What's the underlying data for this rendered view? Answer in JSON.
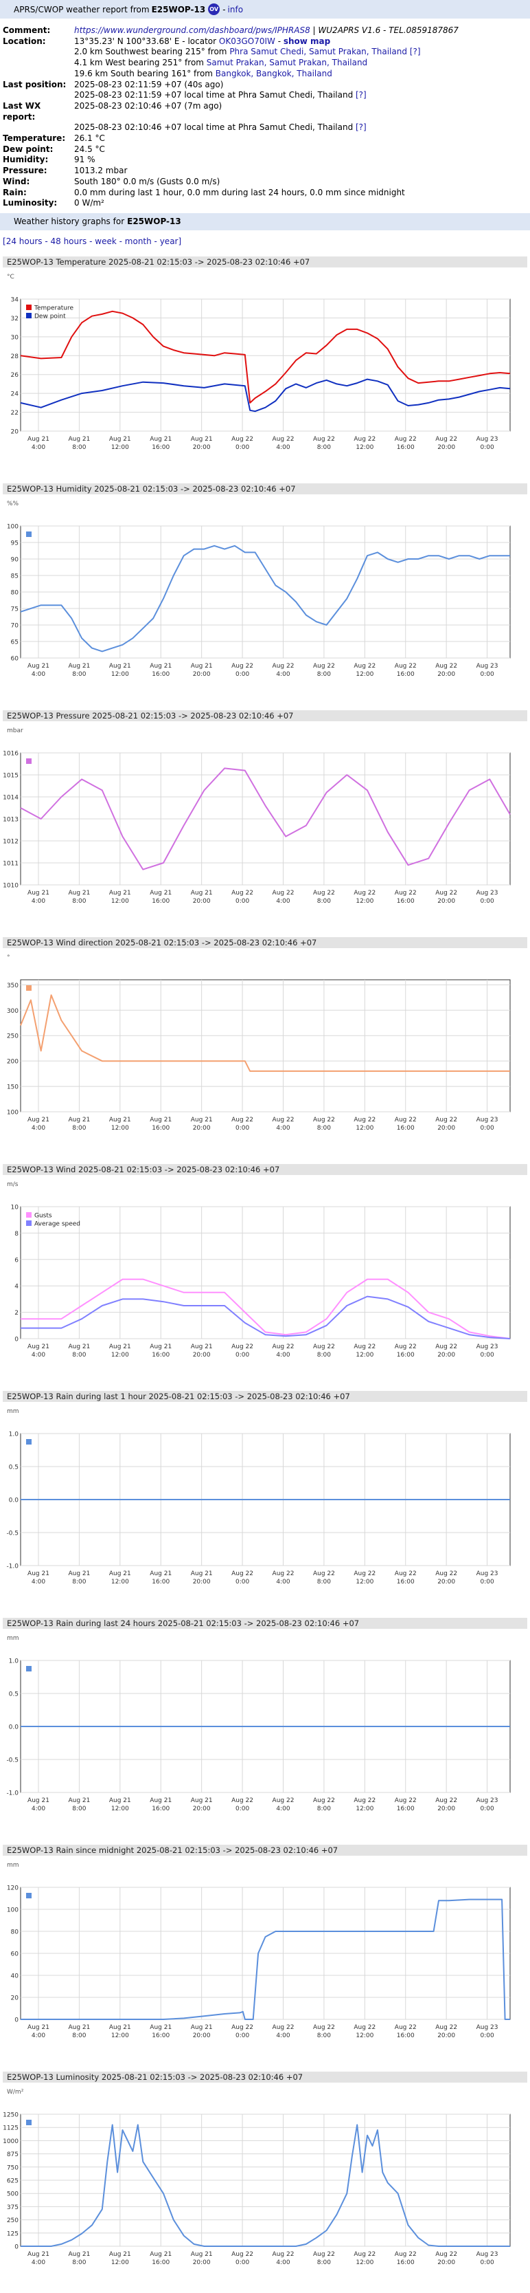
{
  "header": {
    "prefix": "APRS/CWOP weather report from",
    "callsign": "E25WOP-13",
    "ov_label": "OV",
    "info_label": "info",
    "separator": "-"
  },
  "station": {
    "comment_label": "Comment:",
    "comment_link": "https://www.wunderground.com/dashboard/pws/IPHRAS8",
    "comment_rest": " | WU2APRS V1.6 - TEL.0859187867",
    "location_label": "Location:",
    "location_coords": "13°35.23' N 100°33.68' E - locator ",
    "locator": "OK03GO70IW",
    "location_dash": " - ",
    "show_map": "show map",
    "near1_pre": "2.0 km Southwest bearing 215° from ",
    "near1_link": "Phra Samut Chedi, Samut Prakan, Thailand",
    "near1_q": "[?]",
    "near2_pre": "4.1 km West bearing 251° from ",
    "near2_link": "Samut Prakan, Samut Prakan, Thailand",
    "near3_pre": "19.6 km South bearing 161° from ",
    "near3_link": "Bangkok, Bangkok, Thailand",
    "lastpos_label": "Last position:",
    "lastpos_1": "2025-08-23 02:11:59 +07 (40s ago)",
    "lastpos_2": "2025-08-23 02:11:59 +07 local time at Phra Samut Chedi, Thailand ",
    "lastwx_label": "Last WX report:",
    "lastwx_1": "2025-08-23 02:10:46 +07 (7m ago)",
    "lastwx_2": "2025-08-23 02:10:46 +07 local time at Phra Samut Chedi, Thailand ",
    "q": "[?]",
    "temp_label": "Temperature:",
    "temp": "26.1 °C",
    "dew_label": "Dew point:",
    "dew": "24.5 °C",
    "hum_label": "Humidity:",
    "hum": "91 %",
    "press_label": "Pressure:",
    "press": "1013.2 mbar",
    "wind_label": "Wind:",
    "wind": "South 180° 0.0 m/s (Gusts 0.0 m/s)",
    "rain_label": "Rain:",
    "rain": "0.0 mm during last 1 hour, 0.0 mm during last 24 hours, 0.0 mm since midnight",
    "lum_label": "Luminosity:",
    "lum": "0 W/m²"
  },
  "history": {
    "title_prefix": "Weather history graphs for",
    "callsign": "E25WOP-13",
    "periods_open": "[",
    "periods": [
      "24 hours",
      "48 hours",
      "week",
      "month",
      "year"
    ],
    "periods_close": "]"
  },
  "x_ticks": [
    {
      "d": "Aug 21",
      "t": "4:00"
    },
    {
      "d": "Aug 21",
      "t": "8:00"
    },
    {
      "d": "Aug 21",
      "t": "12:00"
    },
    {
      "d": "Aug 21",
      "t": "16:00"
    },
    {
      "d": "Aug 21",
      "t": "20:00"
    },
    {
      "d": "Aug 22",
      "t": "0:00"
    },
    {
      "d": "Aug 22",
      "t": "4:00"
    },
    {
      "d": "Aug 22",
      "t": "8:00"
    },
    {
      "d": "Aug 22",
      "t": "12:00"
    },
    {
      "d": "Aug 22",
      "t": "16:00"
    },
    {
      "d": "Aug 22",
      "t": "20:00"
    },
    {
      "d": "Aug 23",
      "t": "0:00"
    }
  ],
  "x_range_hours": [
    0,
    48
  ],
  "x_first_tick_hours": 1.75,
  "charts": [
    {
      "id": "temperature",
      "title": "E25WOP-13 Temperature 2025-08-21 02:15:03 -> 2025-08-23 02:10:46 +07",
      "unit": "°C",
      "ylim": [
        20,
        34
      ],
      "yticks": [
        20,
        22,
        24,
        26,
        28,
        30,
        32,
        34
      ],
      "legend": [
        "Temperature",
        "Dew point"
      ],
      "colors": [
        "#e01010",
        "#1030c0"
      ],
      "series": [
        {
          "name": "Temperature",
          "x": [
            0,
            2,
            4,
            5,
            6,
            7,
            8,
            9,
            10,
            11,
            12,
            13,
            14,
            15,
            16,
            17,
            18,
            19,
            20,
            21,
            22,
            22.5,
            23,
            24,
            25,
            26,
            27,
            28,
            29,
            30,
            31,
            32,
            33,
            34,
            35,
            36,
            37,
            38,
            39,
            40,
            41,
            42,
            43,
            44,
            45,
            46,
            47,
            48
          ],
          "y": [
            28,
            27.7,
            27.8,
            30,
            31.5,
            32.2,
            32.4,
            32.7,
            32.5,
            32,
            31.3,
            30,
            29,
            28.6,
            28.3,
            28.2,
            28.1,
            28,
            28.3,
            28.2,
            28.1,
            23,
            23.5,
            24.2,
            25,
            26.2,
            27.5,
            28.3,
            28.2,
            29.1,
            30.2,
            30.8,
            30.8,
            30.4,
            29.8,
            28.7,
            26.8,
            25.6,
            25.1,
            25.2,
            25.3,
            25.3,
            25.5,
            25.7,
            25.9,
            26.1,
            26.2,
            26.1
          ]
        },
        {
          "name": "Dew point",
          "x": [
            0,
            2,
            4,
            6,
            8,
            10,
            12,
            14,
            16,
            18,
            20,
            22,
            22.5,
            23,
            24,
            25,
            26,
            27,
            28,
            29,
            30,
            31,
            32,
            33,
            34,
            35,
            36,
            37,
            38,
            39,
            40,
            41,
            42,
            43,
            44,
            45,
            46,
            47,
            48
          ],
          "y": [
            23,
            22.5,
            23.3,
            24,
            24.3,
            24.8,
            25.2,
            25.1,
            24.8,
            24.6,
            25,
            24.8,
            22.2,
            22.1,
            22.5,
            23.2,
            24.5,
            25,
            24.6,
            25.1,
            25.4,
            25,
            24.8,
            25.1,
            25.5,
            25.3,
            24.9,
            23.2,
            22.7,
            22.8,
            23,
            23.3,
            23.4,
            23.6,
            23.9,
            24.2,
            24.4,
            24.6,
            24.5
          ]
        }
      ]
    },
    {
      "id": "humidity",
      "title": "E25WOP-13 Humidity 2025-08-21 02:15:03 -> 2025-08-23 02:10:46 +07",
      "unit": "%%",
      "ylim": [
        60,
        100
      ],
      "yticks": [
        60,
        65,
        70,
        75,
        80,
        85,
        90,
        95,
        100
      ],
      "legend": [
        ""
      ],
      "colors": [
        "#5b8fdc"
      ],
      "series": [
        {
          "name": "",
          "x": [
            0,
            2,
            4,
            5,
            6,
            7,
            8,
            9,
            10,
            11,
            12,
            13,
            14,
            15,
            16,
            17,
            18,
            19,
            20,
            21,
            22,
            23,
            24,
            25,
            26,
            27,
            28,
            29,
            30,
            31,
            32,
            33,
            34,
            35,
            36,
            37,
            38,
            39,
            40,
            41,
            42,
            43,
            44,
            45,
            46,
            47,
            48
          ],
          "y": [
            74,
            76,
            76,
            72,
            66,
            63,
            62,
            63,
            64,
            66,
            69,
            72,
            78,
            85,
            91,
            93,
            93,
            94,
            93,
            94,
            92,
            92,
            87,
            82,
            80,
            77,
            73,
            71,
            70,
            74,
            78,
            84,
            91,
            92,
            90,
            89,
            90,
            90,
            91,
            91,
            90,
            91,
            91,
            90,
            91,
            91,
            91
          ]
        }
      ]
    },
    {
      "id": "pressure",
      "title": "E25WOP-13 Pressure 2025-08-21 02:15:03 -> 2025-08-23 02:10:46 +07",
      "unit": "mbar",
      "ylim": [
        1010,
        1016
      ],
      "yticks": [
        1010,
        1011,
        1012,
        1013,
        1014,
        1015,
        1016
      ],
      "legend": [
        ""
      ],
      "colors": [
        "#d070e0"
      ],
      "series": [
        {
          "name": "",
          "x": [
            0,
            2,
            4,
            6,
            8,
            10,
            12,
            14,
            16,
            18,
            20,
            22,
            24,
            26,
            28,
            30,
            32,
            34,
            36,
            38,
            40,
            42,
            44,
            46,
            48
          ],
          "y": [
            1013.5,
            1013,
            1014,
            1014.8,
            1014.3,
            1012.2,
            1010.7,
            1011,
            1012.7,
            1014.3,
            1015.3,
            1015.2,
            1013.6,
            1012.2,
            1012.7,
            1014.2,
            1015,
            1014.3,
            1012.4,
            1010.9,
            1011.2,
            1012.8,
            1014.3,
            1014.8,
            1013.2
          ]
        }
      ]
    },
    {
      "id": "wind_direction",
      "title": "E25WOP-13 Wind direction 2025-08-21 02:15:03 -> 2025-08-23 02:10:46 +07",
      "unit": "°",
      "ylim": [
        100,
        360
      ],
      "yticks": [
        100,
        150,
        200,
        250,
        300,
        350
      ],
      "legend": [
        ""
      ],
      "colors": [
        "#f4a070"
      ],
      "series": [
        {
          "name": "",
          "x": [
            0,
            1,
            2,
            3,
            4,
            5,
            6,
            8,
            10,
            12,
            14,
            16,
            18,
            20,
            22,
            22.5,
            24,
            26,
            28,
            30,
            32,
            34,
            36,
            38,
            40,
            42,
            44,
            46,
            48
          ],
          "y": [
            270,
            320,
            220,
            330,
            280,
            250,
            220,
            200,
            200,
            200,
            200,
            200,
            200,
            200,
            200,
            180,
            180,
            180,
            180,
            180,
            180,
            180,
            180,
            180,
            180,
            180,
            180,
            180,
            180
          ]
        }
      ]
    },
    {
      "id": "wind",
      "title": "E25WOP-13 Wind 2025-08-21 02:15:03 -> 2025-08-23 02:10:46 +07",
      "unit": "m/s",
      "ylim": [
        0,
        10
      ],
      "yticks": [
        0,
        2,
        4,
        6,
        8,
        10
      ],
      "legend": [
        "Gusts",
        "Average speed"
      ],
      "colors": [
        "#ff90ff",
        "#8080ff"
      ],
      "series": [
        {
          "name": "Gusts",
          "x": [
            0,
            2,
            4,
            6,
            8,
            10,
            12,
            14,
            16,
            18,
            20,
            22,
            24,
            26,
            28,
            30,
            32,
            34,
            36,
            38,
            40,
            42,
            44,
            46,
            48
          ],
          "y": [
            1.5,
            1.5,
            1.5,
            2.5,
            3.5,
            4.5,
            4.5,
            4,
            3.5,
            3.5,
            3.5,
            2,
            0.5,
            0.3,
            0.5,
            1.5,
            3.5,
            4.5,
            4.5,
            3.5,
            2,
            1.5,
            0.5,
            0.2,
            0
          ]
        },
        {
          "name": "Average speed",
          "x": [
            0,
            2,
            4,
            6,
            8,
            10,
            12,
            14,
            16,
            18,
            20,
            22,
            24,
            26,
            28,
            30,
            32,
            34,
            36,
            38,
            40,
            42,
            44,
            46,
            48
          ],
          "y": [
            0.8,
            0.8,
            0.8,
            1.5,
            2.5,
            3,
            3,
            2.8,
            2.5,
            2.5,
            2.5,
            1.2,
            0.3,
            0.2,
            0.3,
            1,
            2.5,
            3.2,
            3,
            2.4,
            1.3,
            0.8,
            0.3,
            0.1,
            0
          ]
        }
      ]
    },
    {
      "id": "rain_1h",
      "title": "E25WOP-13 Rain during last 1 hour 2025-08-21 02:15:03 -> 2025-08-23 02:10:46 +07",
      "unit": "mm",
      "ylim": [
        -1,
        1
      ],
      "yticks": [
        -1.0,
        -0.5,
        0.0,
        0.5,
        1.0
      ],
      "legend": [
        ""
      ],
      "colors": [
        "#5b8fdc"
      ],
      "series": [
        {
          "name": "",
          "x": [
            0,
            48
          ],
          "y": [
            0,
            0
          ]
        }
      ]
    },
    {
      "id": "rain_24h",
      "title": "E25WOP-13 Rain during last 24 hours 2025-08-21 02:15:03 -> 2025-08-23 02:10:46 +07",
      "unit": "mm",
      "ylim": [
        -1,
        1
      ],
      "yticks": [
        -1.0,
        -0.5,
        0.0,
        0.5,
        1.0
      ],
      "legend": [
        ""
      ],
      "colors": [
        "#5b8fdc"
      ],
      "series": [
        {
          "name": "",
          "x": [
            0,
            48
          ],
          "y": [
            0,
            0
          ]
        }
      ]
    },
    {
      "id": "rain_midnight",
      "title": "E25WOP-13 Rain since midnight 2025-08-21 02:15:03 -> 2025-08-23 02:10:46 +07",
      "unit": "mm",
      "ylim": [
        0,
        120
      ],
      "yticks": [
        0,
        20,
        40,
        60,
        80,
        100,
        120
      ],
      "legend": [
        ""
      ],
      "colors": [
        "#5b8fdc"
      ],
      "series": [
        {
          "name": "",
          "x": [
            0,
            14,
            16,
            18,
            20,
            21.5,
            21.8,
            22,
            22.8,
            23.3,
            24,
            25,
            26,
            28,
            30,
            32,
            34,
            36,
            38,
            40,
            40.5,
            41,
            42,
            44,
            46,
            47.2,
            47.5,
            48
          ],
          "y": [
            0,
            0,
            1,
            3,
            5,
            6,
            7,
            0,
            0,
            60,
            75,
            80,
            80,
            80,
            80,
            80,
            80,
            80,
            80,
            80,
            80,
            108,
            108,
            109,
            109,
            109,
            0,
            0
          ]
        }
      ]
    },
    {
      "id": "luminosity",
      "title": "E25WOP-13 Luminosity 2025-08-21 02:15:03 -> 2025-08-23 02:10:46 +07",
      "unit": "W/m²",
      "ylim": [
        0,
        1250
      ],
      "yticks": [
        0,
        125,
        250,
        375,
        500,
        625,
        750,
        875,
        1000,
        1125,
        1250
      ],
      "legend": [
        ""
      ],
      "colors": [
        "#5b8fdc"
      ],
      "series": [
        {
          "name": "",
          "x": [
            0,
            3,
            4,
            5,
            6,
            7,
            8,
            8.5,
            9,
            9.5,
            10,
            10.5,
            11,
            11.5,
            12,
            13,
            14,
            15,
            16,
            17,
            18,
            24,
            27,
            28,
            29,
            30,
            31,
            32,
            32.5,
            33,
            33.5,
            34,
            34.5,
            35,
            35.5,
            36,
            37,
            38,
            39,
            40,
            41,
            42,
            48
          ],
          "y": [
            0,
            0,
            20,
            60,
            120,
            200,
            350,
            800,
            1150,
            700,
            1100,
            1000,
            900,
            1150,
            800,
            650,
            500,
            250,
            100,
            20,
            0,
            0,
            0,
            20,
            80,
            150,
            300,
            500,
            850,
            1150,
            700,
            1050,
            950,
            1100,
            700,
            600,
            500,
            200,
            80,
            10,
            0,
            0,
            0
          ]
        }
      ]
    }
  ]
}
